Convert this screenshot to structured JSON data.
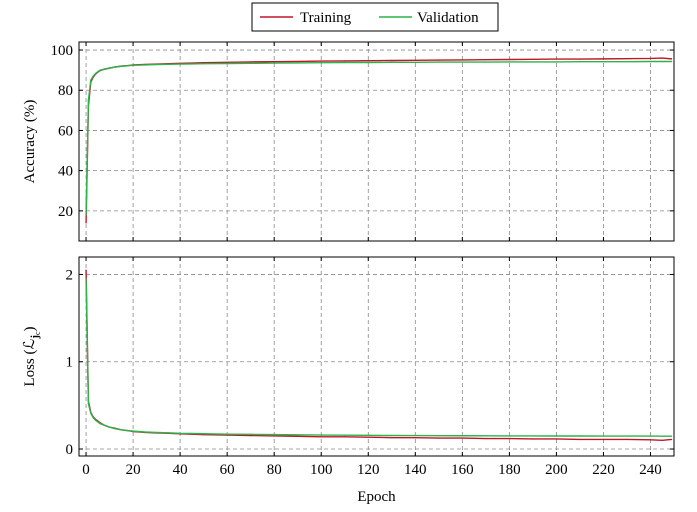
{
  "chart_data": [
    {
      "type": "line",
      "ylabel": "Accuracy (%)",
      "xlim": [
        -3,
        250
      ],
      "ylim": [
        5,
        104
      ],
      "xticks": [
        0,
        20,
        40,
        60,
        80,
        100,
        120,
        140,
        160,
        180,
        200,
        220,
        240
      ],
      "yticks": [
        20,
        40,
        60,
        80,
        100
      ],
      "xtick_labels_visible": false,
      "grid": true,
      "legend": {
        "placement": "top-center",
        "entries": [
          "Training",
          "Validation"
        ]
      },
      "series": [
        {
          "name": "Training",
          "color": "#c0172c",
          "x": [
            0,
            1,
            2,
            3,
            4,
            5,
            6,
            8,
            10,
            12,
            15,
            18,
            20,
            25,
            30,
            35,
            40,
            45,
            50,
            60,
            70,
            80,
            90,
            100,
            110,
            120,
            130,
            140,
            150,
            160,
            170,
            180,
            190,
            200,
            210,
            220,
            230,
            240,
            245,
            249
          ],
          "values": [
            14,
            72,
            84,
            86.5,
            88,
            89,
            89.8,
            90.5,
            91,
            91.5,
            92,
            92.3,
            92.6,
            92.8,
            93,
            93.2,
            93.4,
            93.5,
            93.7,
            93.9,
            94.1,
            94.2,
            94.3,
            94.5,
            94.6,
            94.7,
            94.8,
            94.9,
            95,
            95.1,
            95.2,
            95.3,
            95.4,
            95.5,
            95.5,
            95.6,
            95.7,
            95.8,
            96,
            95.6
          ]
        },
        {
          "name": "Validation",
          "color": "#2cb34a",
          "x": [
            0,
            1,
            2,
            3,
            4,
            5,
            6,
            8,
            10,
            12,
            15,
            18,
            20,
            25,
            30,
            35,
            40,
            45,
            50,
            60,
            70,
            80,
            90,
            100,
            110,
            120,
            130,
            140,
            150,
            160,
            170,
            180,
            190,
            200,
            210,
            220,
            230,
            240,
            245,
            249
          ],
          "values": [
            18,
            75,
            85,
            87,
            88.3,
            89.2,
            90,
            90.6,
            91.1,
            91.5,
            91.9,
            92.2,
            92.4,
            92.6,
            92.8,
            92.9,
            93,
            93.1,
            93.2,
            93.3,
            93.4,
            93.5,
            93.6,
            93.7,
            93.8,
            93.8,
            93.9,
            93.9,
            94,
            94,
            94,
            94.1,
            94.1,
            94.1,
            94.2,
            94.2,
            94.2,
            94.3,
            94.3,
            94.3
          ]
        }
      ]
    },
    {
      "type": "line",
      "xlabel": "Epoch",
      "ylabel": "Loss (ℒ",
      "ylabel_sub": "j",
      "ylabel_subsub": "c",
      "ylabel_close": ")",
      "xlim": [
        -3,
        250
      ],
      "ylim": [
        -0.08,
        2.2
      ],
      "xticks": [
        0,
        20,
        40,
        60,
        80,
        100,
        120,
        140,
        160,
        180,
        200,
        220,
        240
      ],
      "yticks": [
        0,
        1,
        2
      ],
      "grid": true,
      "series": [
        {
          "name": "Training",
          "color": "#c0172c",
          "x": [
            0,
            1,
            2,
            3,
            4,
            5,
            6,
            8,
            10,
            12,
            15,
            18,
            20,
            25,
            30,
            35,
            40,
            45,
            50,
            60,
            70,
            80,
            90,
            100,
            110,
            120,
            130,
            140,
            150,
            160,
            170,
            180,
            190,
            200,
            210,
            220,
            230,
            240,
            245,
            249
          ],
          "values": [
            2.05,
            0.55,
            0.42,
            0.37,
            0.34,
            0.32,
            0.3,
            0.27,
            0.25,
            0.24,
            0.22,
            0.21,
            0.2,
            0.19,
            0.185,
            0.18,
            0.175,
            0.17,
            0.165,
            0.16,
            0.155,
            0.15,
            0.145,
            0.14,
            0.14,
            0.135,
            0.13,
            0.13,
            0.125,
            0.125,
            0.12,
            0.12,
            0.115,
            0.115,
            0.11,
            0.11,
            0.11,
            0.105,
            0.1,
            0.11
          ]
        },
        {
          "name": "Validation",
          "color": "#2cb34a",
          "x": [
            0,
            1,
            2,
            3,
            4,
            5,
            6,
            8,
            10,
            12,
            15,
            18,
            20,
            25,
            30,
            35,
            40,
            45,
            50,
            60,
            70,
            80,
            90,
            100,
            110,
            120,
            130,
            140,
            150,
            160,
            170,
            180,
            190,
            200,
            210,
            220,
            230,
            240,
            245,
            249
          ],
          "values": [
            1.95,
            0.52,
            0.41,
            0.36,
            0.33,
            0.31,
            0.29,
            0.27,
            0.25,
            0.235,
            0.22,
            0.21,
            0.205,
            0.195,
            0.19,
            0.185,
            0.18,
            0.178,
            0.175,
            0.17,
            0.168,
            0.165,
            0.163,
            0.16,
            0.158,
            0.157,
            0.155,
            0.154,
            0.153,
            0.152,
            0.151,
            0.15,
            0.15,
            0.149,
            0.149,
            0.148,
            0.148,
            0.148,
            0.147,
            0.147
          ]
        }
      ]
    }
  ]
}
